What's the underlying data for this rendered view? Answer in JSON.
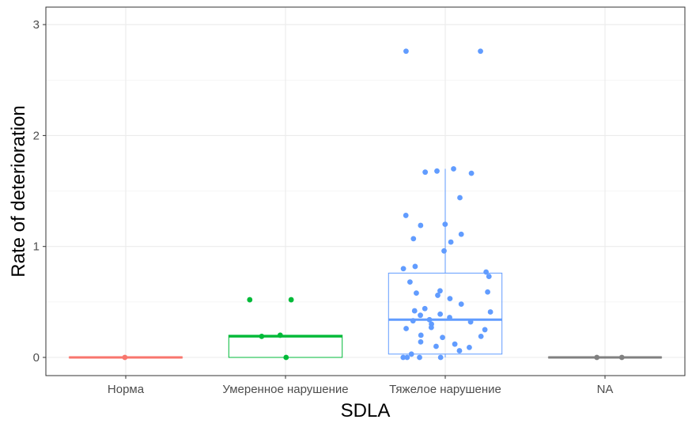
{
  "chart_data": {
    "type": "boxplot",
    "title": "",
    "xlabel": "SDLA",
    "ylabel": "Rate of deterioration",
    "categories": [
      "Норма",
      "Умеренное нарушение",
      "Тяжелое нарушение",
      "NA"
    ],
    "yticks": [
      0,
      1,
      2,
      3
    ],
    "ylim": [
      -0.15,
      3.1
    ],
    "grid": true,
    "legend": "none",
    "series": [
      {
        "category": "Норма",
        "color": "#F8766D",
        "box": {
          "q1": 0,
          "median": 0,
          "q3": 0,
          "whisker_low": 0,
          "whisker_high": 0
        },
        "points": [
          0
        ]
      },
      {
        "category": "Умеренное нарушение",
        "color": "#00BA38",
        "box": {
          "q1": 0,
          "median": 0.19,
          "q3": 0.2,
          "whisker_low": 0,
          "whisker_high": 0.2
        },
        "points": [
          0.52,
          0.52,
          0.19,
          0.2,
          0
        ]
      },
      {
        "category": "Тяжелое нарушение",
        "color": "#619CFF",
        "box": {
          "q1": 0.03,
          "median": 0.34,
          "q3": 0.76,
          "whisker_low": 0,
          "whisker_high": 1.7
        },
        "points": [
          2.76,
          2.76,
          1.7,
          1.68,
          1.67,
          1.66,
          1.44,
          1.28,
          1.2,
          1.19,
          1.11,
          1.07,
          1.04,
          0.96,
          0.82,
          0.8,
          0.77,
          0.73,
          0.68,
          0.6,
          0.59,
          0.58,
          0.56,
          0.53,
          0.48,
          0.44,
          0.42,
          0.41,
          0.39,
          0.38,
          0.36,
          0.34,
          0.33,
          0.32,
          0.3,
          0.27,
          0.26,
          0.25,
          0.2,
          0.19,
          0.18,
          0.14,
          0.12,
          0.1,
          0.09,
          0.06,
          0.03,
          0,
          0,
          0,
          0
        ]
      },
      {
        "category": "NA",
        "color": "#808080",
        "box": {
          "q1": 0,
          "median": 0,
          "q3": 0,
          "whisker_low": 0,
          "whisker_high": 0
        },
        "points": [
          0,
          0
        ]
      }
    ]
  }
}
